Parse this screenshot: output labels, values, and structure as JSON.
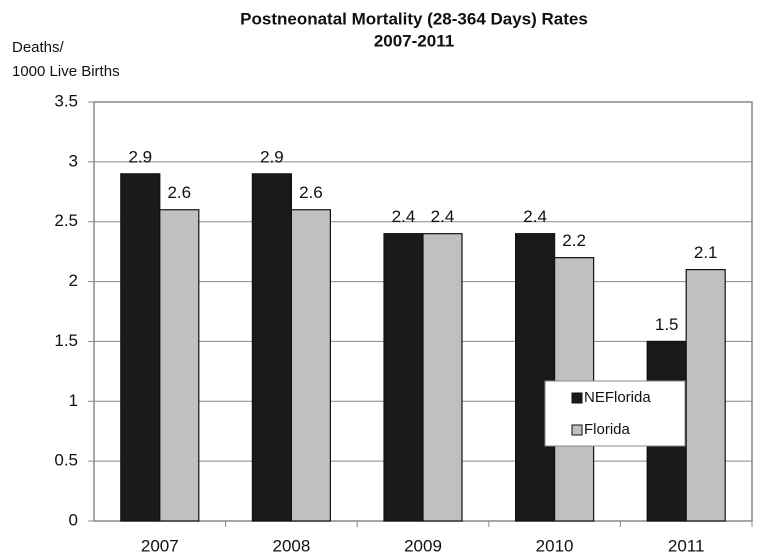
{
  "chart_data": {
    "type": "bar",
    "title": "Postneonatal Mortality (28-364 Days) Rates",
    "subtitle": "2007-2011",
    "ylabel": [
      "Deaths/",
      "1000 Live Births"
    ],
    "categories": [
      "2007",
      "2008",
      "2009",
      "2010",
      "2011"
    ],
    "series": [
      {
        "name": "NEFlorida",
        "color": "#1a1a1a",
        "values": [
          2.9,
          2.9,
          2.4,
          2.4,
          1.5
        ]
      },
      {
        "name": "Florida",
        "color": "#c0c0c0",
        "values": [
          2.6,
          2.6,
          2.4,
          2.2,
          2.1
        ]
      }
    ],
    "ylim": [
      0,
      3.5
    ],
    "yticks": [
      0,
      0.5,
      1,
      1.5,
      2,
      2.5,
      3,
      3.5
    ],
    "grid": true,
    "legend": "lower right"
  }
}
